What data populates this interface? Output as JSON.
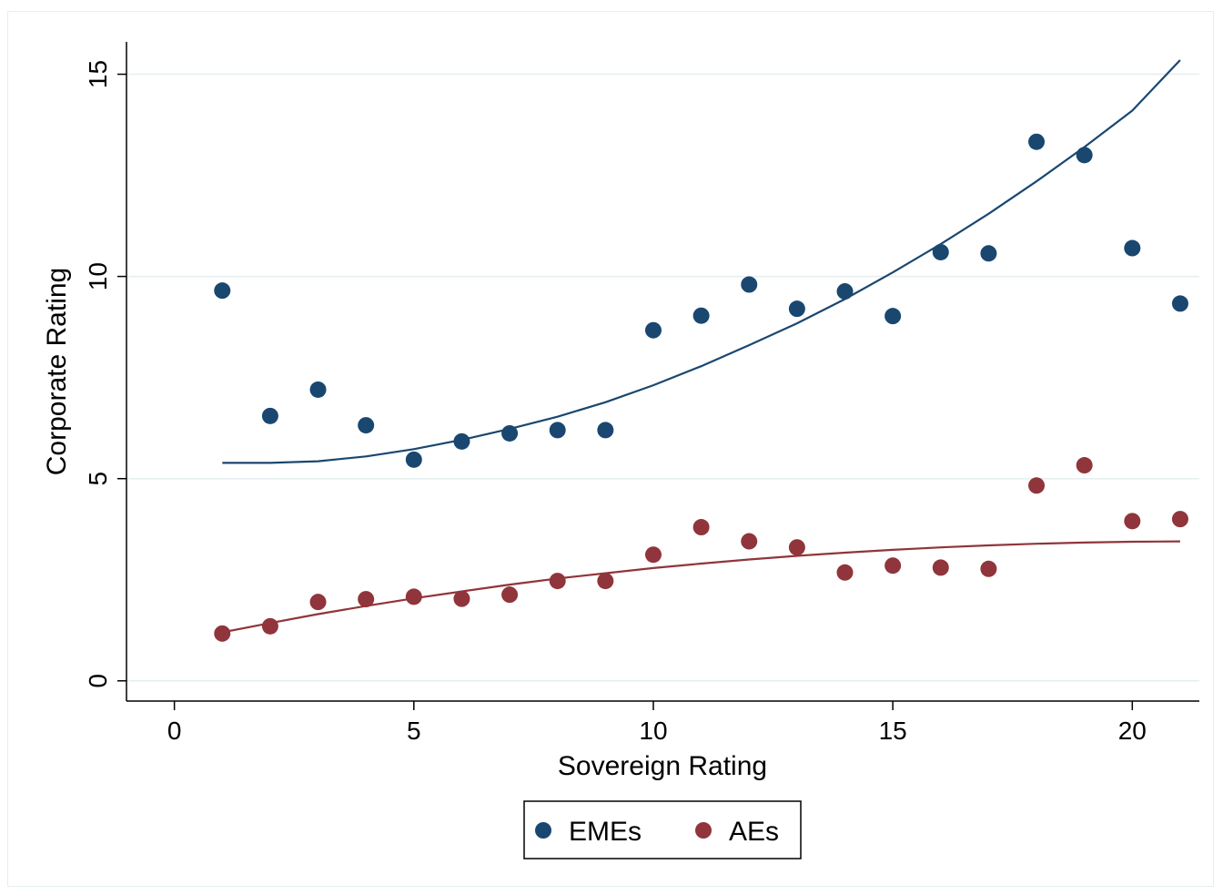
{
  "chart_data": {
    "type": "scatter",
    "title": "",
    "xlabel": "Sovereign Rating",
    "ylabel": "Corporate Rating",
    "xlim": [
      -1,
      21.4
    ],
    "ylim": [
      -0.5,
      15.8
    ],
    "xticks": [
      0,
      5,
      10,
      15,
      20
    ],
    "yticks": [
      0,
      5,
      10,
      15
    ],
    "grid": "horizontal",
    "legend_position": "bottom-center",
    "x": [
      1,
      2,
      3,
      4,
      5,
      6,
      7,
      8,
      9,
      10,
      11,
      12,
      13,
      14,
      15,
      16,
      17,
      18,
      19,
      20,
      21
    ],
    "series": [
      {
        "name": "EMEs",
        "color": "#1a476f",
        "values": [
          9.65,
          6.55,
          7.2,
          6.32,
          5.47,
          5.92,
          6.12,
          6.2,
          6.2,
          8.67,
          9.03,
          9.8,
          9.2,
          9.63,
          9.02,
          10.6,
          10.57,
          13.33,
          13.0,
          10.7,
          9.33
        ],
        "fit_curve": [
          5.39,
          5.39,
          5.43,
          5.55,
          5.73,
          5.96,
          6.23,
          6.53,
          6.89,
          7.31,
          7.78,
          8.3,
          8.84,
          9.44,
          10.1,
          10.8,
          11.55,
          12.35,
          13.2,
          14.1,
          15.35
        ]
      },
      {
        "name": "AEs",
        "color": "#90353b",
        "values": [
          1.17,
          1.35,
          1.95,
          2.02,
          2.08,
          2.03,
          2.13,
          2.47,
          2.47,
          3.12,
          3.8,
          3.45,
          3.3,
          2.68,
          2.85,
          2.8,
          2.77,
          4.83,
          5.33,
          3.95,
          4.0
        ],
        "fit_curve": [
          1.2,
          1.43,
          1.65,
          1.85,
          2.04,
          2.21,
          2.38,
          2.53,
          2.66,
          2.79,
          2.9,
          3.0,
          3.09,
          3.17,
          3.24,
          3.3,
          3.35,
          3.39,
          3.42,
          3.44,
          3.45
        ]
      }
    ]
  }
}
